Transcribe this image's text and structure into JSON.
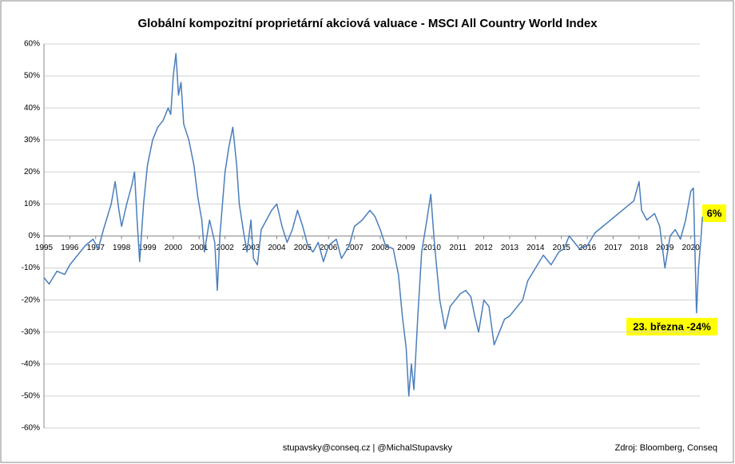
{
  "chart_data": {
    "type": "line",
    "title": "Globální kompozitní proprietární akciová valuace - MSCI All Country World Index",
    "x": [
      1995.0,
      1995.2,
      1995.5,
      1995.8,
      1996.0,
      1996.3,
      1996.6,
      1996.9,
      1997.1,
      1997.3,
      1997.6,
      1997.75,
      1997.9,
      1998.0,
      1998.2,
      1998.4,
      1998.5,
      1998.6,
      1998.7,
      1998.85,
      1999.0,
      1999.2,
      1999.4,
      1999.6,
      1999.8,
      1999.9,
      2000.0,
      2000.1,
      2000.2,
      2000.3,
      2000.4,
      2000.6,
      2000.8,
      2000.95,
      2001.1,
      2001.2,
      2001.4,
      2001.6,
      2001.7,
      2001.8,
      2002.0,
      2002.15,
      2002.3,
      2002.45,
      2002.55,
      2002.7,
      2002.85,
      2003.0,
      2003.1,
      2003.25,
      2003.4,
      2003.6,
      2003.8,
      2004.0,
      2004.2,
      2004.4,
      2004.6,
      2004.8,
      2005.0,
      2005.2,
      2005.4,
      2005.6,
      2005.8,
      2006.0,
      2006.3,
      2006.5,
      2006.8,
      2007.0,
      2007.3,
      2007.6,
      2007.8,
      2008.0,
      2008.2,
      2008.5,
      2008.7,
      2008.85,
      2009.0,
      2009.1,
      2009.2,
      2009.3,
      2009.45,
      2009.6,
      2009.8,
      2009.95,
      2010.1,
      2010.3,
      2010.5,
      2010.7,
      2010.9,
      2011.1,
      2011.3,
      2011.5,
      2011.65,
      2011.8,
      2012.0,
      2012.2,
      2012.4,
      2012.6,
      2012.8,
      2013.0,
      2013.3,
      2013.5,
      2013.7,
      2014.0,
      2014.3,
      2014.6,
      2014.9,
      2015.1,
      2015.3,
      2015.5,
      2015.7,
      2016.0,
      2016.3,
      2016.6,
      2016.9,
      2017.2,
      2017.5,
      2017.8,
      2018.0,
      2018.1,
      2018.3,
      2018.6,
      2018.8,
      2019.0,
      2019.2,
      2019.4,
      2019.6,
      2019.8,
      2020.0,
      2020.1,
      2020.22,
      2020.3,
      2020.4,
      2020.45
    ],
    "series": [
      {
        "color": "#4a7ebb",
        "values": [
          -13,
          -15,
          -11,
          -12,
          -9,
          -6,
          -3,
          -1,
          -4,
          2,
          10,
          17,
          8,
          3,
          10,
          16,
          20,
          5,
          -8,
          10,
          22,
          30,
          34,
          36,
          40,
          38,
          50,
          57,
          44,
          48,
          35,
          30,
          22,
          12,
          5,
          -5,
          5,
          -2,
          -17,
          0,
          20,
          28,
          34,
          22,
          10,
          2,
          -5,
          5,
          -7,
          -9,
          2,
          5,
          8,
          10,
          3,
          -2,
          2,
          8,
          3,
          -3,
          -5,
          -2,
          -8,
          -3,
          -1,
          -7,
          -3,
          3,
          5,
          8,
          6,
          2,
          -3,
          -4,
          -12,
          -25,
          -35,
          -50,
          -40,
          -48,
          -25,
          -5,
          5,
          13,
          -3,
          -20,
          -29,
          -22,
          -20,
          -18,
          -17,
          -19,
          -25,
          -30,
          -20,
          -22,
          -34,
          -30,
          -26,
          -25,
          -22,
          -20,
          -14,
          -10,
          -6,
          -9,
          -5,
          -4,
          0,
          -2,
          -4,
          -3,
          1,
          3,
          5,
          7,
          9,
          11,
          17,
          8,
          5,
          7,
          3,
          -10,
          0,
          2,
          -1,
          5,
          14,
          15,
          -24,
          -10,
          0,
          6
        ]
      }
    ],
    "xlim": [
      1995,
      2020.35
    ],
    "xticks": [
      1995,
      1996,
      1997,
      1998,
      1999,
      2000,
      2001,
      2002,
      2003,
      2004,
      2005,
      2006,
      2007,
      2008,
      2009,
      2010,
      2011,
      2012,
      2013,
      2014,
      2015,
      2016,
      2017,
      2018,
      2019,
      2020
    ],
    "ylim": [
      -60,
      60
    ],
    "yticks": [
      {
        "value": 60,
        "label": "60%"
      },
      {
        "value": 50,
        "label": "50%"
      },
      {
        "value": 40,
        "label": "40%"
      },
      {
        "value": 30,
        "label": "30%"
      },
      {
        "value": 20,
        "label": "20%"
      },
      {
        "value": 10,
        "label": "10%"
      },
      {
        "value": 0,
        "label": "0%"
      },
      {
        "value": -10,
        "label": "-10%"
      },
      {
        "value": -20,
        "label": "-20%"
      },
      {
        "value": -30,
        "label": "-30%"
      },
      {
        "value": -40,
        "label": "-40%"
      },
      {
        "value": -50,
        "label": "-50%"
      },
      {
        "value": -60,
        "label": "-60%"
      }
    ],
    "grid": true,
    "annotations": [
      "6%",
      "23. března -24%"
    ],
    "footer": [
      "stupavsky@conseq.cz  |  @MichalStupavsky",
      "Zdroj: Bloomberg, Conseq"
    ]
  }
}
